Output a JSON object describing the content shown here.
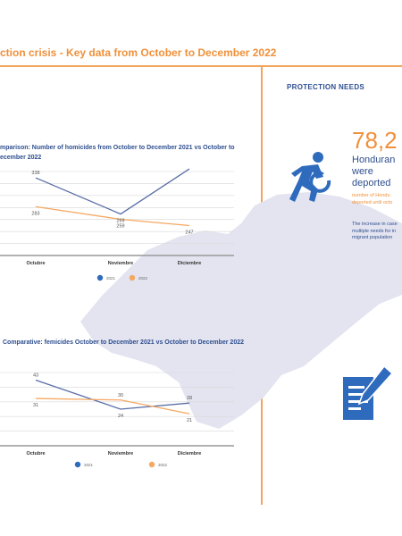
{
  "header": {
    "title": "ction crisis  - Key data from October to December 2022"
  },
  "right_panel": {
    "section_title": "PROTECTION NEEDS",
    "big_number": "78,2",
    "big_label": "Honduran\nwere\ndeported",
    "note_orange": "number of Hondu\ndeported until octo",
    "note_blue": "The increase in case\nmultiple needs for in\nmigrant population"
  },
  "colors": {
    "accent": "#f0903a",
    "navy": "#2f4f8f",
    "series_2021": "#5a6ea8",
    "series_2022": "#f5a862",
    "map": "#e3e4f0"
  },
  "chart_data": [
    {
      "type": "line",
      "title": "mparison: Number of homicides from October to December 2021 vs October to\necember 2022",
      "categories": [
        "Octubre",
        "Noviembre",
        "Diciembre"
      ],
      "series": [
        {
          "name": "2021",
          "values": [
            338,
            269,
            355
          ]
        },
        {
          "name": "2022",
          "values": [
            283,
            259,
            247
          ]
        }
      ]
    },
    {
      "type": "line",
      "title": "Comparative: femicides October to December 2021 vs October to December 2022",
      "categories": [
        "Octubre",
        "Noviembre",
        "Diciembre"
      ],
      "series": [
        {
          "name": "2021",
          "values": [
            43,
            24,
            28
          ]
        },
        {
          "name": "2022",
          "values": [
            31,
            30,
            21
          ]
        }
      ]
    }
  ]
}
